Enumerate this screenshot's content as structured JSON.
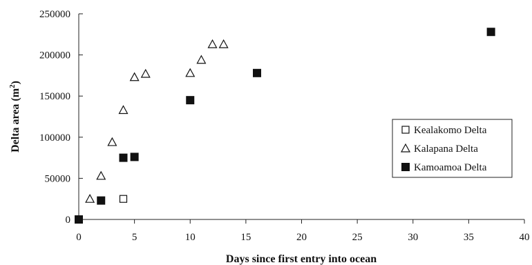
{
  "chart_data": {
    "type": "scatter",
    "xlabel": "Days since first entry into ocean",
    "ylabel": "Delta area (m",
    "ylabel_sup": "2",
    "ylabel_suffix": ")",
    "xlim": [
      0,
      40
    ],
    "ylim": [
      0,
      250000
    ],
    "x_ticks": [
      0,
      5,
      10,
      15,
      20,
      25,
      30,
      35,
      40
    ],
    "y_ticks": [
      0,
      50000,
      100000,
      150000,
      200000,
      250000
    ],
    "x_tick_labels": [
      "0",
      "5",
      "10",
      "15",
      "20",
      "25",
      "30",
      "35",
      "40"
    ],
    "y_tick_labels": [
      "0",
      "50000",
      "100000",
      "150000",
      "200000",
      "250000"
    ],
    "grid": false,
    "legend_position": "right",
    "series": [
      {
        "name": "Kealakomo Delta",
        "marker": "open-square",
        "points": [
          [
            4,
            25000
          ]
        ]
      },
      {
        "name": "Kalapana Delta",
        "marker": "open-triangle",
        "points": [
          [
            1,
            25000
          ],
          [
            2,
            53000
          ],
          [
            3,
            94000
          ],
          [
            4,
            133000
          ],
          [
            5,
            173000
          ],
          [
            6,
            177000
          ],
          [
            10,
            178000
          ],
          [
            11,
            194000
          ],
          [
            12,
            213000
          ],
          [
            13,
            213000
          ]
        ]
      },
      {
        "name": "Kamoamoa Delta",
        "marker": "filled-square",
        "points": [
          [
            0,
            0
          ],
          [
            2,
            23000
          ],
          [
            4,
            75000
          ],
          [
            5,
            76000
          ],
          [
            10,
            145000
          ],
          [
            16,
            178000
          ],
          [
            37,
            228000
          ]
        ]
      }
    ]
  }
}
